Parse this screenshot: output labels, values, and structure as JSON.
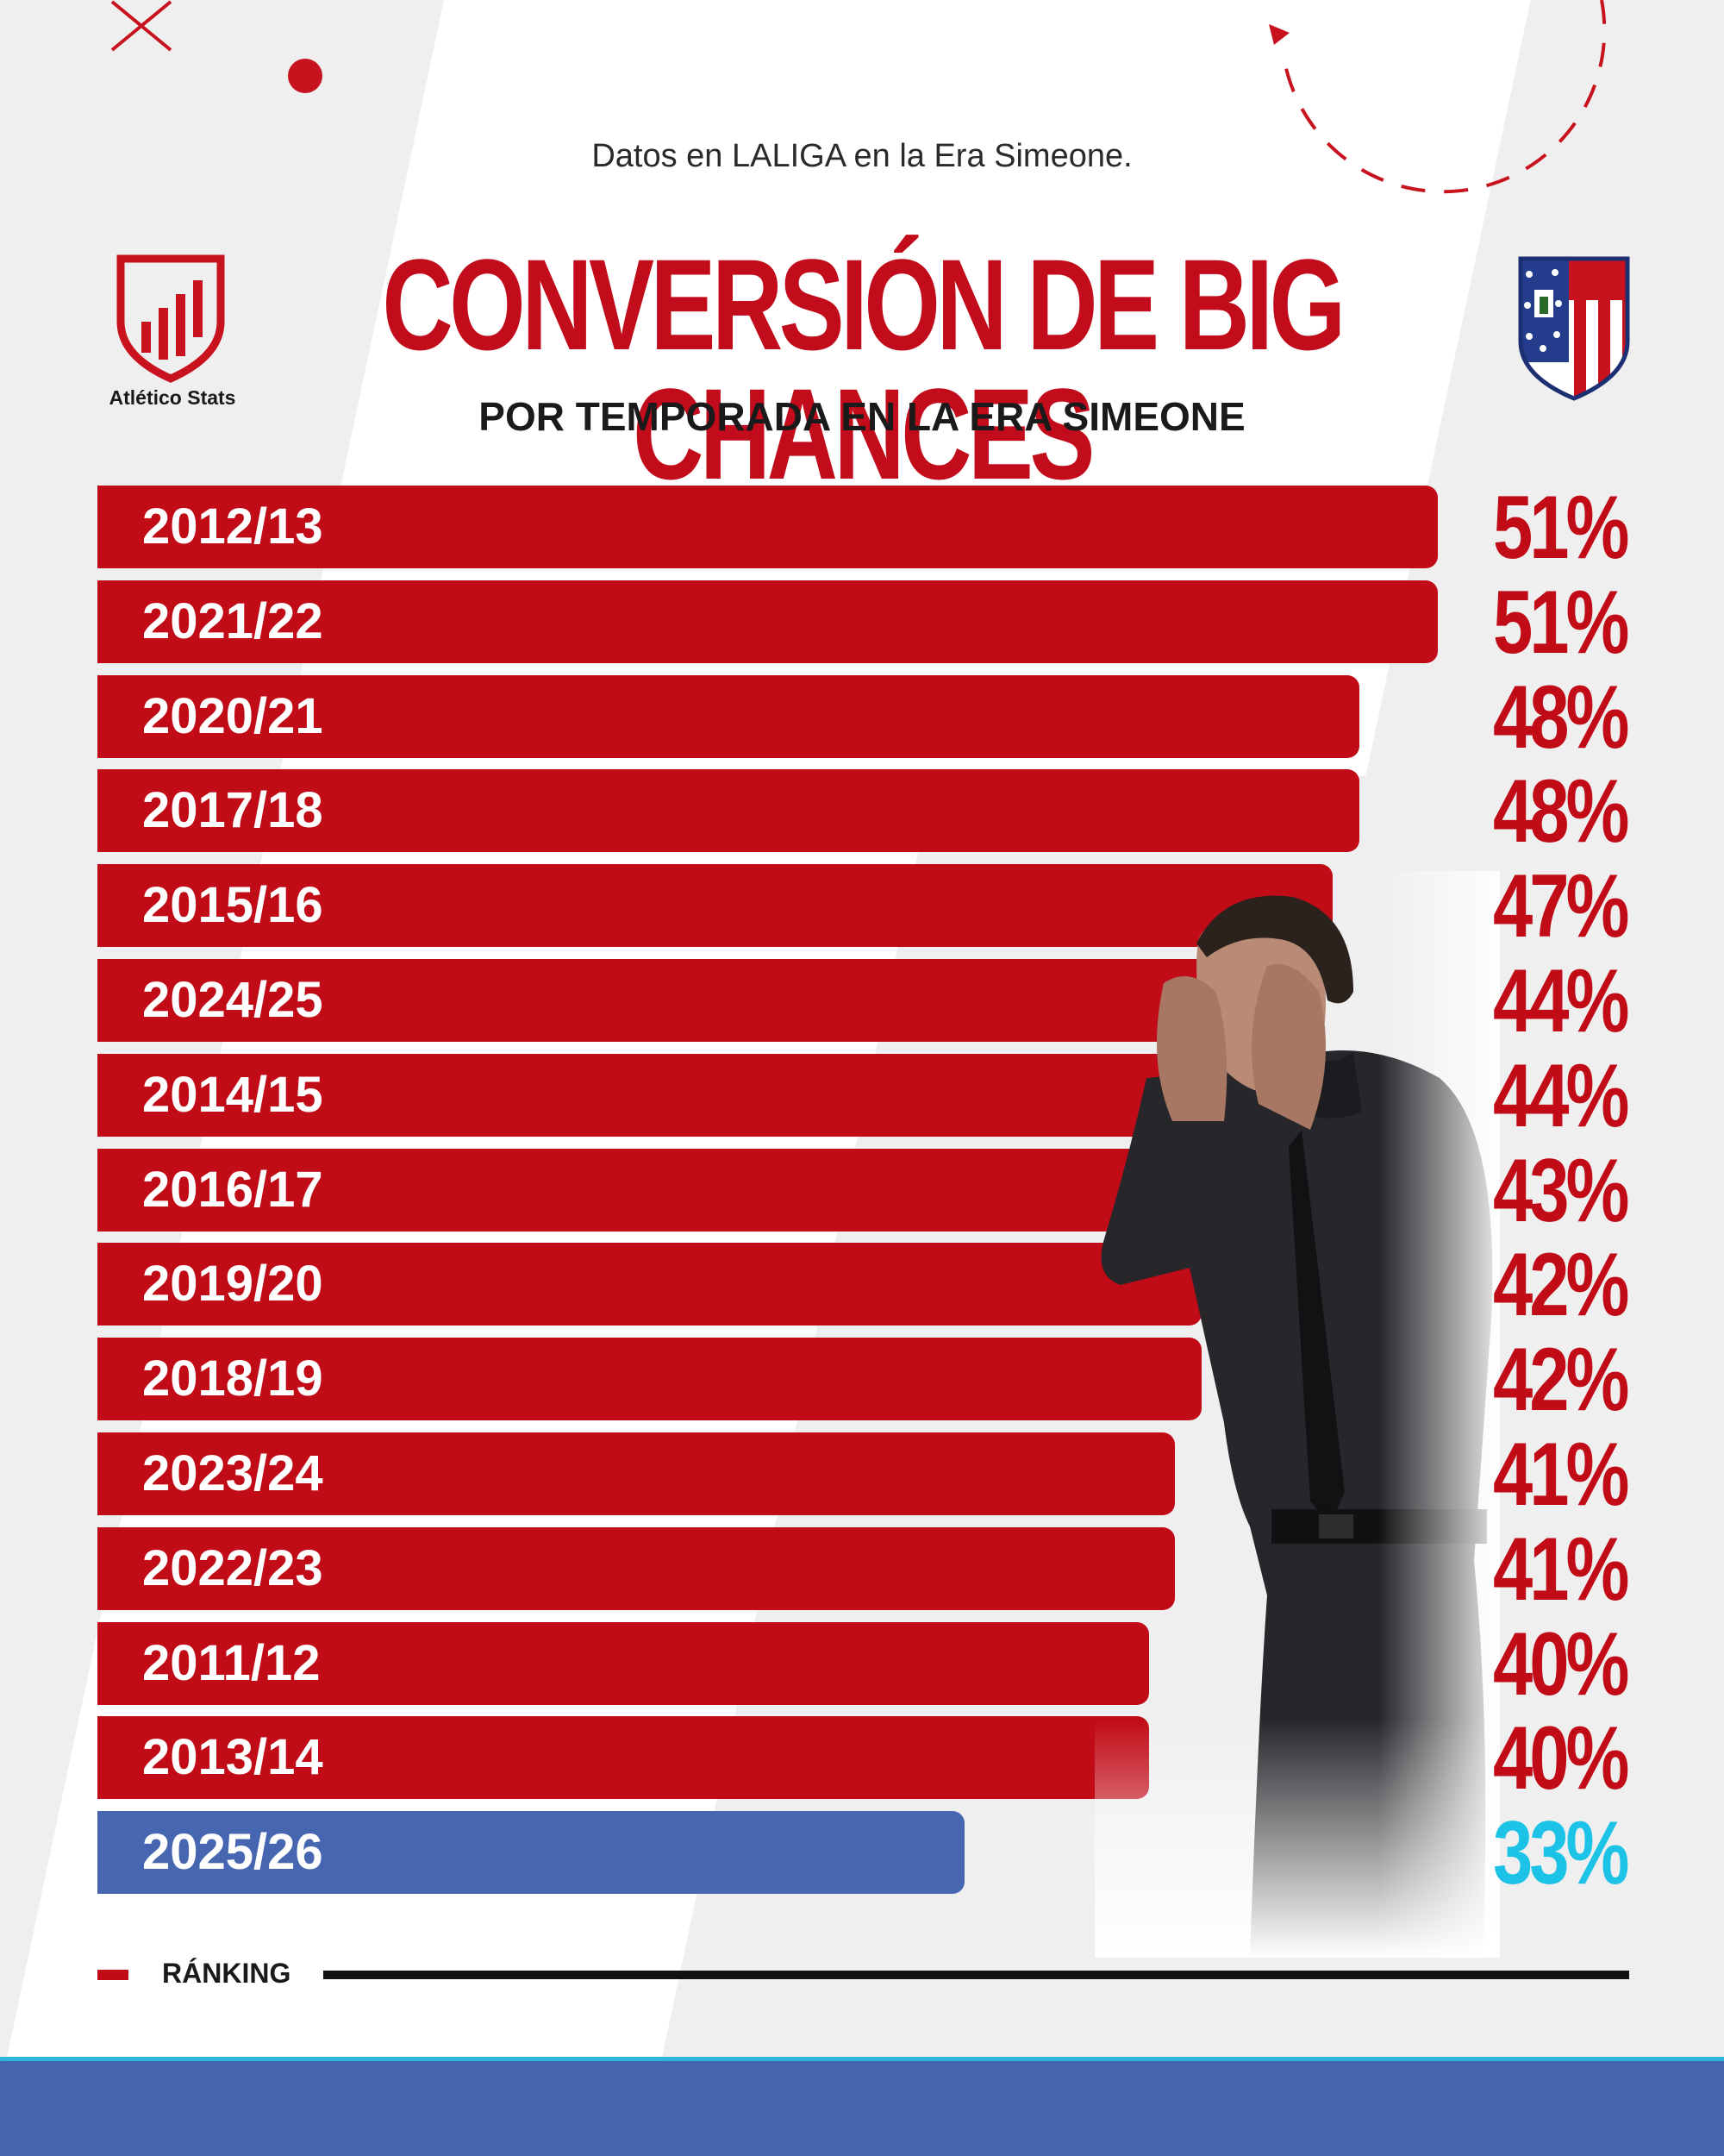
{
  "header": {
    "subtitle": "Datos en LALIGA en la Era Simeone.",
    "title": "CONVERSIÓN DE BIG CHANCES",
    "subhead": "POR TEMPORADA EN LA ERA SIMEONE",
    "brand_name": "Atlético Stats"
  },
  "legend": {
    "label": "RÁNKING"
  },
  "colors": {
    "bar": "#c10b17",
    "bar_current": "#4766b2",
    "value": "#c10b17",
    "value_current": "#1dc3e6",
    "footer": "#4464ad"
  },
  "icons": {
    "brand_logo": "bar-chart-shield-icon",
    "club_crest": "atletico-madrid-crest-icon",
    "decor_cross": "cross-icon"
  },
  "chart_data": {
    "type": "bar",
    "orientation": "horizontal",
    "sorted": "descending",
    "xlim": [
      0,
      51
    ],
    "unit": "%",
    "categories": [
      "2012/13",
      "2021/22",
      "2020/21",
      "2017/18",
      "2015/16",
      "2024/25",
      "2014/15",
      "2016/17",
      "2019/20",
      "2018/19",
      "2023/24",
      "2022/23",
      "2011/12",
      "2013/14",
      "2025/26"
    ],
    "values": [
      51,
      51,
      48,
      48,
      47,
      44,
      44,
      43,
      42,
      42,
      41,
      41,
      40,
      40,
      33
    ],
    "value_labels": [
      "51%",
      "51%",
      "48%",
      "48%",
      "47%",
      "44%",
      "44%",
      "43%",
      "42%",
      "42%",
      "41%",
      "41%",
      "40%",
      "40%",
      "33%"
    ],
    "highlight": "2025/26"
  }
}
